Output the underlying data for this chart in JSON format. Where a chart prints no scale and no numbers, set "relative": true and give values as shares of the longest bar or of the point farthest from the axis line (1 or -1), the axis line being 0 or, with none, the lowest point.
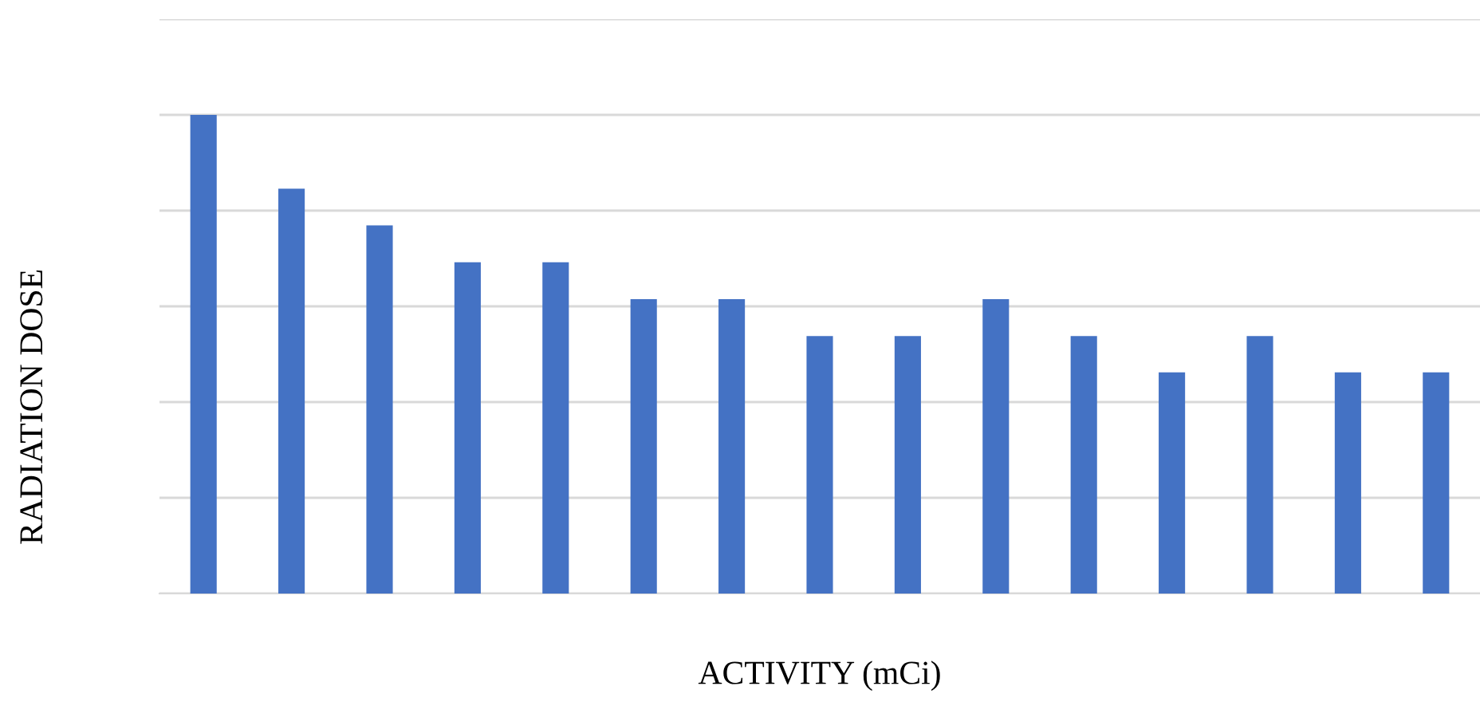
{
  "chart_data": {
    "type": "bar",
    "xlabel": "ACTIVITY (mCi)",
    "ylabel": "RADIATION DOSE",
    "categories": [
      null,
      null,
      null,
      null,
      null,
      null,
      null,
      null,
      null,
      null,
      null,
      null,
      null,
      null,
      null
    ],
    "values": [
      1,
      0.846,
      0.769,
      0.692,
      0.692,
      0.615,
      0.615,
      0.538,
      0.538,
      0.615,
      0.538,
      0.462,
      0.538,
      0.462,
      0.462
    ],
    "color": "#4472c4",
    "relative": true,
    "grid": "y"
  }
}
